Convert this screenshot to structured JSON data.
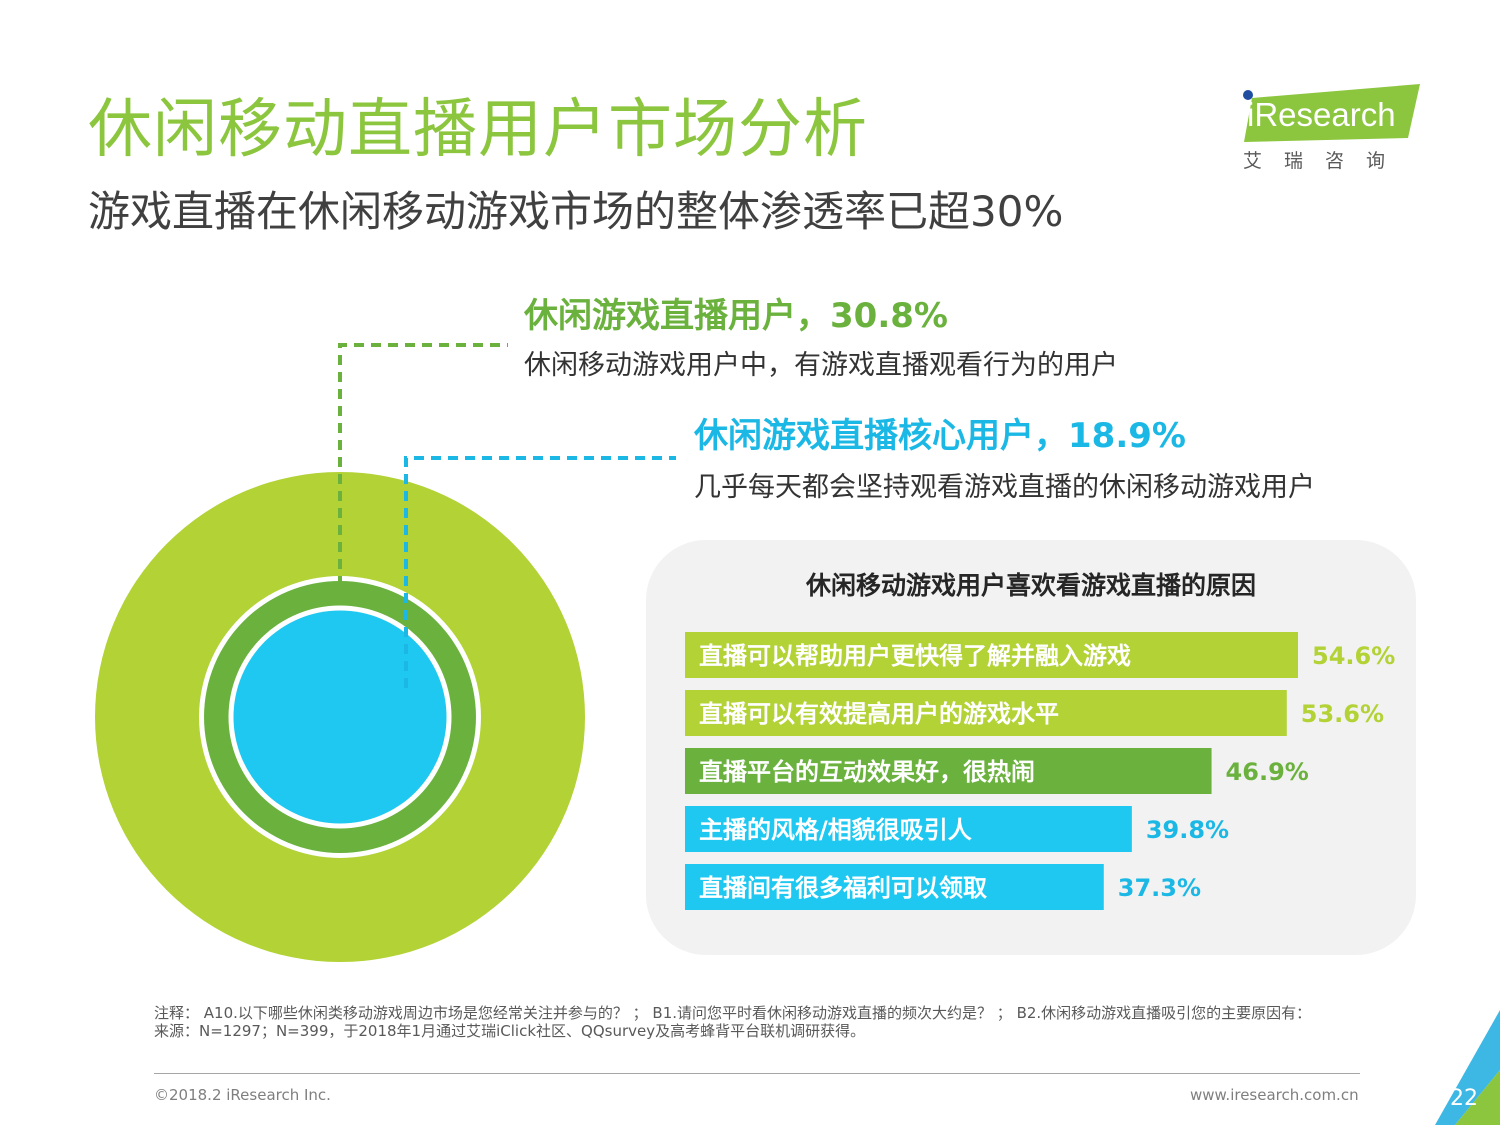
{
  "header": {
    "title": "休闲移动直播用户市场分析",
    "subtitle": "游戏直播在休闲移动游戏市场的整体渗透率已超30%"
  },
  "logo": {
    "name": "iResearch",
    "tagline": "艾瑞咨询",
    "colors": {
      "green": "#8cc63f",
      "blue": "#1f4ea1"
    }
  },
  "annotations": [
    {
      "title": "休闲游戏直播用户，30.8%",
      "desc": "休闲移动游戏用户中，有游戏直播观看行为的用户",
      "color": "#6ab13d"
    },
    {
      "title": "休闲游戏直播核心用户，18.9%",
      "desc": "几乎每天都会坚持观看游戏直播的休闲移动游戏用户",
      "color": "#1cb8e5"
    }
  ],
  "chart_data": [
    {
      "type": "pie",
      "subtype": "nested-circles",
      "series": [
        {
          "name": "休闲游戏直播用户",
          "value": 30.8,
          "color": "#6ab13d"
        },
        {
          "name": "休闲游戏直播核心用户",
          "value": 18.9,
          "color": "#1fc8f0"
        }
      ],
      "outer_color": "#b2d235"
    },
    {
      "type": "bar",
      "orientation": "horizontal",
      "title": "休闲移动游戏用户喜欢看游戏直播的原因",
      "categories": [
        "直播可以帮助用户更快得了解并融入游戏",
        "直播可以有效提高用户的游戏水平",
        "直播平台的互动效果好，很热闹",
        "主播的风格/相貌很吸引人",
        "直播间有很多福利可以领取"
      ],
      "values": [
        54.6,
        53.6,
        46.9,
        39.8,
        37.3
      ],
      "value_labels": [
        "54.6%",
        "53.6%",
        "46.9%",
        "39.8%",
        "37.3%"
      ],
      "colors": [
        "#b2d235",
        "#b2d235",
        "#6ab13d",
        "#1fc8f0",
        "#1fc8f0"
      ],
      "label_colors": [
        "#b2d235",
        "#b2d235",
        "#6ab13d",
        "#1cb8e5",
        "#1cb8e5"
      ],
      "xlim": [
        0,
        60
      ],
      "grid": false,
      "legend": "none"
    }
  ],
  "footnote": {
    "notes": "注释：    A10.以下哪些休闲类移动游戏周边市场是您经常关注并参与的？ ；  B1.请问您平时看休闲移动游戏直播的频次大约是？ ；  B2.休闲移动游戏直播吸引您的主要原因有：",
    "source": "来源：N=1297；N=399，于2018年1月通过艾瑞iClick社区、QQsurvey及高考蜂背平台联机调研获得。"
  },
  "footer": {
    "copyright": "©2018.2 iResearch Inc.",
    "website": "www.iresearch.com.cn",
    "page": "22"
  }
}
